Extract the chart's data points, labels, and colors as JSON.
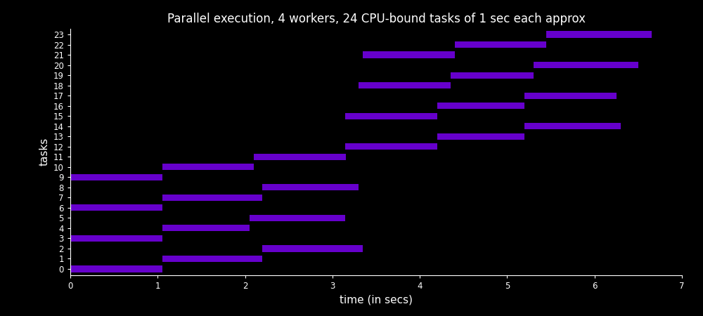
{
  "title": "Parallel execution, 4 workers, 24 CPU-bound tasks of 1 sec each approx",
  "xlabel": "time (in secs)",
  "ylabel": "tasks",
  "background_color": "#000000",
  "bar_color": "#6600cc",
  "text_color": "#ffffff",
  "tasks": [
    {
      "task": 0,
      "start": 0.0,
      "end": 1.05
    },
    {
      "task": 1,
      "start": 1.05,
      "end": 2.2
    },
    {
      "task": 2,
      "start": 2.2,
      "end": 3.35
    },
    {
      "task": 3,
      "start": 0.0,
      "end": 1.05
    },
    {
      "task": 4,
      "start": 1.05,
      "end": 2.05
    },
    {
      "task": 5,
      "start": 2.05,
      "end": 3.15
    },
    {
      "task": 6,
      "start": 0.0,
      "end": 1.05
    },
    {
      "task": 7,
      "start": 1.05,
      "end": 2.2
    },
    {
      "task": 8,
      "start": 2.2,
      "end": 3.3
    },
    {
      "task": 9,
      "start": 0.0,
      "end": 1.05
    },
    {
      "task": 10,
      "start": 1.05,
      "end": 2.1
    },
    {
      "task": 11,
      "start": 2.1,
      "end": 3.15
    },
    {
      "task": 12,
      "start": 3.15,
      "end": 4.2
    },
    {
      "task": 13,
      "start": 4.2,
      "end": 5.2
    },
    {
      "task": 14,
      "start": 5.2,
      "end": 6.3
    },
    {
      "task": 15,
      "start": 3.15,
      "end": 4.2
    },
    {
      "task": 16,
      "start": 4.2,
      "end": 5.2
    },
    {
      "task": 17,
      "start": 5.2,
      "end": 6.25
    },
    {
      "task": 18,
      "start": 3.3,
      "end": 4.35
    },
    {
      "task": 19,
      "start": 4.35,
      "end": 5.3
    },
    {
      "task": 20,
      "start": 5.3,
      "end": 6.5
    },
    {
      "task": 21,
      "start": 3.35,
      "end": 4.4
    },
    {
      "task": 22,
      "start": 4.4,
      "end": 5.45
    },
    {
      "task": 23,
      "start": 5.45,
      "end": 6.65
    }
  ],
  "xlim": [
    0,
    7
  ],
  "ylim": [
    -0.6,
    23.6
  ],
  "xticks": [
    0,
    1,
    2,
    3,
    4,
    5,
    6,
    7
  ],
  "yticks": [
    0,
    1,
    2,
    3,
    4,
    5,
    6,
    7,
    8,
    9,
    10,
    11,
    12,
    13,
    14,
    15,
    16,
    17,
    18,
    19,
    20,
    21,
    22,
    23
  ],
  "bar_height": 0.65,
  "figsize": [
    10.0,
    4.5
  ],
  "dpi": 100
}
